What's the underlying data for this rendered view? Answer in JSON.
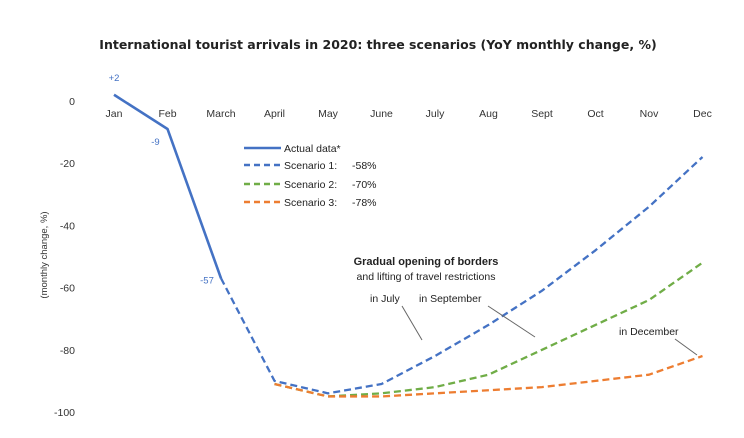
{
  "chart_data": {
    "type": "line",
    "title": "International tourist arrivals in 2020: three scenarios (YoY monthly change, %)",
    "ylabel": "(monthly change, %)",
    "xlabel": "",
    "categories": [
      "Jan",
      "Feb",
      "March",
      "April",
      "May",
      "June",
      "July",
      "Aug",
      "Sept",
      "Oct",
      "Nov",
      "Dec"
    ],
    "ylim": [
      -100,
      0
    ],
    "yticks": [
      0,
      -20,
      -40,
      -60,
      -80,
      -100
    ],
    "grid": false,
    "legend_position": "center",
    "series": [
      {
        "name": "Actual data*",
        "color": "#4472C4",
        "style": "solid",
        "values": [
          2,
          -9,
          -57,
          null,
          null,
          null,
          null,
          null,
          null,
          null,
          null,
          null
        ]
      },
      {
        "name": "Scenario 1:",
        "pct": "-58%",
        "color": "#4472C4",
        "style": "dashed",
        "values": [
          null,
          null,
          -57,
          -90,
          -94,
          -91,
          -82,
          -72,
          -61,
          -48,
          -34,
          -18
        ]
      },
      {
        "name": "Scenario 2:",
        "pct": "-70%",
        "color": "#70AD47",
        "style": "dashed",
        "values": [
          null,
          null,
          null,
          -91,
          -95,
          -94,
          -92,
          -88,
          -80,
          -72,
          -64,
          -52
        ]
      },
      {
        "name": "Scenario 3:",
        "pct": "-78%",
        "color": "#ED7D31",
        "style": "dashed",
        "values": [
          null,
          null,
          null,
          -91,
          -95,
          -95,
          -94,
          -93,
          -92,
          -90,
          -88,
          -82
        ]
      }
    ],
    "data_labels": [
      {
        "category": "Jan",
        "text": "+2"
      },
      {
        "category": "Feb",
        "text": "-9"
      },
      {
        "category": "March",
        "text": "-57"
      }
    ],
    "annotations": {
      "heading": "Gradual opening of borders",
      "subheading": "and lifting of travel restrictions",
      "july": "in July",
      "september": "in September",
      "december": "in December"
    }
  }
}
